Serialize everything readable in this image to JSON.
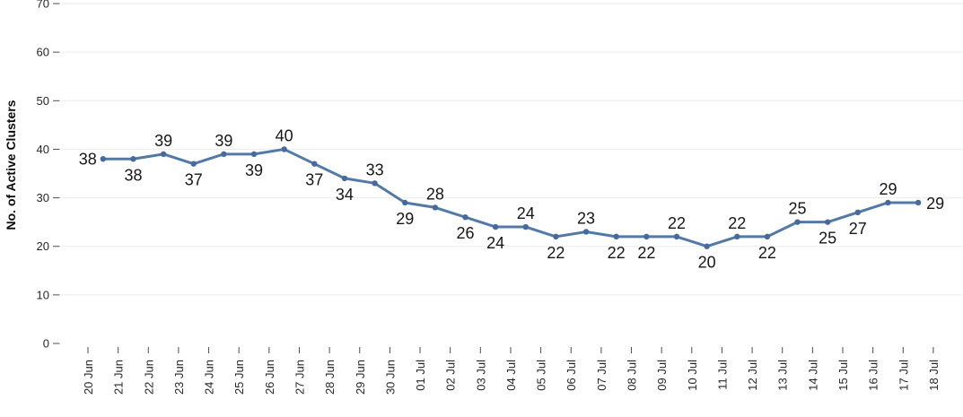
{
  "chart_data": {
    "type": "line",
    "title": "",
    "xlabel": "",
    "ylabel": "No. of Active Clusters",
    "ylim": [
      0,
      70
    ],
    "y_ticks": [
      0,
      10,
      20,
      30,
      40,
      50,
      60,
      70
    ],
    "grid": "horizontal",
    "legend": "none",
    "x_alignment": "points plotted midway between tick marks",
    "x_tick_labels": [
      "20 Jun",
      "21 Jun",
      "22 Jun",
      "23 Jun",
      "24 Jun",
      "25 Jun",
      "26 Jun",
      "27 Jun",
      "28 Jun",
      "29 Jun",
      "30 Jun",
      "01 Jul",
      "02 Jul",
      "03 Jul",
      "04 Jul",
      "05 Jul",
      "06 Jul",
      "07 Jul",
      "08 Jul",
      "09 Jul",
      "10 Jul",
      "11 Jul",
      "12 Jul",
      "13 Jul",
      "14 Jul",
      "15 Jul",
      "16 Jul",
      "17 Jul",
      "18 Jul"
    ],
    "series": [
      {
        "name": "Active Clusters",
        "points": [
          {
            "date": "20 Jun",
            "value": 38,
            "label_pos": "left"
          },
          {
            "date": "21 Jun",
            "value": 38,
            "label_pos": "below"
          },
          {
            "date": "22 Jun",
            "value": 39,
            "label_pos": "above"
          },
          {
            "date": "23 Jun",
            "value": 37,
            "label_pos": "below"
          },
          {
            "date": "24 Jun",
            "value": 39,
            "label_pos": "above"
          },
          {
            "date": "25 Jun",
            "value": 39,
            "label_pos": "below"
          },
          {
            "date": "26 Jun",
            "value": 40,
            "label_pos": "above"
          },
          {
            "date": "27 Jun",
            "value": 37,
            "label_pos": "below"
          },
          {
            "date": "28 Jun",
            "value": 34,
            "label_pos": "below"
          },
          {
            "date": "29 Jun",
            "value": 33,
            "label_pos": "above"
          },
          {
            "date": "30 Jun",
            "value": 29,
            "label_pos": "below"
          },
          {
            "date": "01 Jul",
            "value": 28,
            "label_pos": "above"
          },
          {
            "date": "02 Jul",
            "value": 26,
            "label_pos": "below"
          },
          {
            "date": "03 Jul",
            "value": 24,
            "label_pos": "below"
          },
          {
            "date": "04 Jul",
            "value": 24,
            "label_pos": "above"
          },
          {
            "date": "05 Jul",
            "value": 22,
            "label_pos": "below"
          },
          {
            "date": "06 Jul",
            "value": 23,
            "label_pos": "above"
          },
          {
            "date": "07 Jul",
            "value": 22,
            "label_pos": "below"
          },
          {
            "date": "08 Jul",
            "value": 22,
            "label_pos": "below"
          },
          {
            "date": "09 Jul",
            "value": 22,
            "label_pos": "above"
          },
          {
            "date": "10 Jul",
            "value": 20,
            "label_pos": "below"
          },
          {
            "date": "11 Jul",
            "value": 22,
            "label_pos": "above"
          },
          {
            "date": "12 Jul",
            "value": 22,
            "label_pos": "below"
          },
          {
            "date": "13 Jul",
            "value": 25,
            "label_pos": "above"
          },
          {
            "date": "14 Jul",
            "value": 25,
            "label_pos": "below"
          },
          {
            "date": "15 Jul",
            "value": 27,
            "label_pos": "below"
          },
          {
            "date": "16 Jul",
            "value": 29,
            "label_pos": "above"
          },
          {
            "date": "17 Jul",
            "value": 29,
            "label_pos": "right"
          }
        ]
      }
    ],
    "style": {
      "line_color": "#5379a6",
      "marker_color": "#47699b",
      "gridline_color": "#ebebeb",
      "tick_color": "#4d4d4d",
      "axis_text_color": "#262626",
      "data_label_color": "#161616",
      "background": "#ffffff"
    }
  }
}
